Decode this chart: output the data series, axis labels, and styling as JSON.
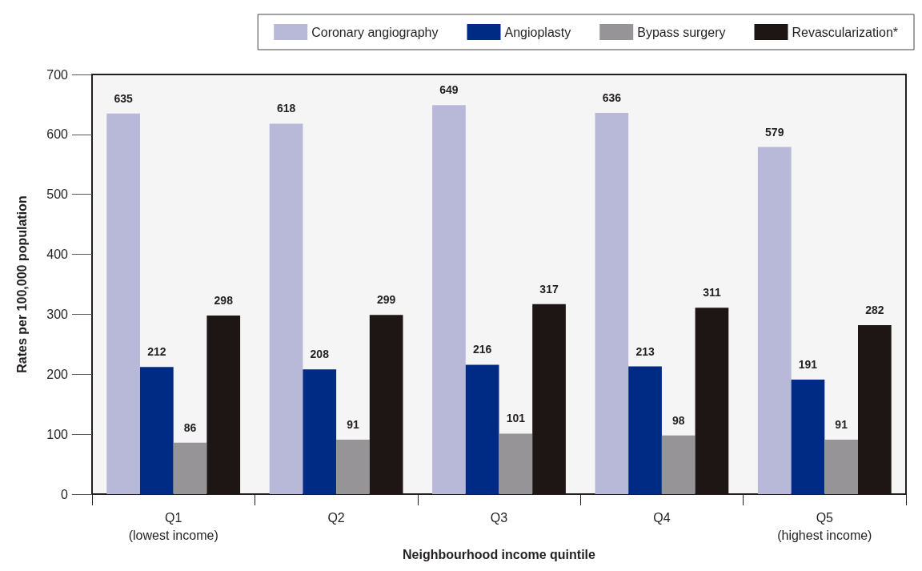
{
  "chart_data": {
    "type": "bar",
    "xlabel": "Neighbourhood income quintile",
    "ylabel": "Rates per 100,000 population",
    "categories": [
      "Q1\n(lowest income)",
      "Q2",
      "Q3",
      "Q4",
      "Q5\n(highest income)"
    ],
    "series": [
      {
        "name": "Coronary angiography",
        "color": "#b8b8d8",
        "values": [
          635,
          618,
          649,
          636,
          579
        ]
      },
      {
        "name": "Angioplasty",
        "color": "#002b85",
        "values": [
          212,
          208,
          216,
          213,
          191
        ]
      },
      {
        "name": "Bypass surgery",
        "color": "#969497",
        "values": [
          86,
          91,
          101,
          98,
          91
        ]
      },
      {
        "name": "Revascularization*",
        "color": "#1e1614",
        "values": [
          298,
          299,
          317,
          311,
          282
        ]
      }
    ],
    "ylim": [
      0,
      700
    ],
    "yticks": [
      0,
      100,
      200,
      300,
      400,
      500,
      600,
      700
    ],
    "grid": false,
    "legend": "top right",
    "data_labels": true
  }
}
